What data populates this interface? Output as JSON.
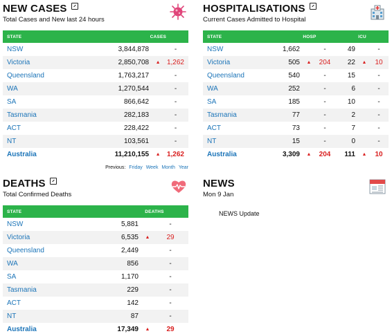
{
  "new_cases": {
    "title": "NEW CASES",
    "subtitle": "Total Cases and New last 24 hours",
    "icon": "virus-icon",
    "headers": [
      "STATE",
      "CASES"
    ],
    "rows": [
      {
        "state": "NSW",
        "value": "3,844,878",
        "arrow": "",
        "change": "-"
      },
      {
        "state": "Victoria",
        "value": "2,850,708",
        "arrow": "▲",
        "change": "1,262"
      },
      {
        "state": "Queensland",
        "value": "1,763,217",
        "arrow": "",
        "change": "-"
      },
      {
        "state": "WA",
        "value": "1,270,544",
        "arrow": "",
        "change": "-"
      },
      {
        "state": "SA",
        "value": "866,642",
        "arrow": "",
        "change": "-"
      },
      {
        "state": "Tasmania",
        "value": "282,183",
        "arrow": "",
        "change": "-"
      },
      {
        "state": "ACT",
        "value": "228,422",
        "arrow": "",
        "change": "-"
      },
      {
        "state": "NT",
        "value": "103,561",
        "arrow": "",
        "change": "-"
      },
      {
        "state": "Australia",
        "value": "11,210,155",
        "arrow": "▲",
        "change": "1,262"
      }
    ],
    "previous": {
      "label": "Previous:",
      "links": [
        "Friday",
        "Week",
        "Month",
        "Year"
      ]
    }
  },
  "hospitalisations": {
    "title": "HOSPITALISATIONS",
    "subtitle": "Current Cases Admitted to Hospital",
    "icon": "hospital-icon",
    "headers": [
      "STATE",
      "HOSP",
      "ICU"
    ],
    "rows": [
      {
        "state": "NSW",
        "hosp": "1,662",
        "hosp_arrow": "",
        "hosp_change": "-",
        "icu": "49",
        "icu_arrow": "",
        "icu_change": "-"
      },
      {
        "state": "Victoria",
        "hosp": "505",
        "hosp_arrow": "▲",
        "hosp_change": "204",
        "icu": "22",
        "icu_arrow": "▲",
        "icu_change": "10"
      },
      {
        "state": "Queensland",
        "hosp": "540",
        "hosp_arrow": "",
        "hosp_change": "-",
        "icu": "15",
        "icu_arrow": "",
        "icu_change": "-"
      },
      {
        "state": "WA",
        "hosp": "252",
        "hosp_arrow": "",
        "hosp_change": "-",
        "icu": "6",
        "icu_arrow": "",
        "icu_change": "-"
      },
      {
        "state": "SA",
        "hosp": "185",
        "hosp_arrow": "",
        "hosp_change": "-",
        "icu": "10",
        "icu_arrow": "",
        "icu_change": "-"
      },
      {
        "state": "Tasmania",
        "hosp": "77",
        "hosp_arrow": "",
        "hosp_change": "-",
        "icu": "2",
        "icu_arrow": "",
        "icu_change": "-"
      },
      {
        "state": "ACT",
        "hosp": "73",
        "hosp_arrow": "",
        "hosp_change": "-",
        "icu": "7",
        "icu_arrow": "",
        "icu_change": "-"
      },
      {
        "state": "NT",
        "hosp": "15",
        "hosp_arrow": "",
        "hosp_change": "-",
        "icu": "0",
        "icu_arrow": "",
        "icu_change": "-"
      },
      {
        "state": "Australia",
        "hosp": "3,309",
        "hosp_arrow": "▲",
        "hosp_change": "204",
        "icu": "111",
        "icu_arrow": "▲",
        "icu_change": "10"
      }
    ]
  },
  "deaths": {
    "title": "DEATHS",
    "subtitle": "Total Confirmed Deaths",
    "icon": "heart-pulse-icon",
    "headers": [
      "STATE",
      "DEATHS"
    ],
    "rows": [
      {
        "state": "NSW",
        "value": "5,881",
        "arrow": "",
        "change": "-"
      },
      {
        "state": "Victoria",
        "value": "6,535",
        "arrow": "▲",
        "change": "29"
      },
      {
        "state": "Queensland",
        "value": "2,449",
        "arrow": "",
        "change": "-"
      },
      {
        "state": "WA",
        "value": "856",
        "arrow": "",
        "change": "-"
      },
      {
        "state": "SA",
        "value": "1,170",
        "arrow": "",
        "change": "-"
      },
      {
        "state": "Tasmania",
        "value": "229",
        "arrow": "",
        "change": "-"
      },
      {
        "state": "ACT",
        "value": "142",
        "arrow": "",
        "change": "-"
      },
      {
        "state": "NT",
        "value": "87",
        "arrow": "",
        "change": "-"
      },
      {
        "state": "Australia",
        "value": "17,349",
        "arrow": "▲",
        "change": "29"
      }
    ]
  },
  "news": {
    "title": "NEWS",
    "date": "Mon 9 Jan",
    "icon": "newspaper-icon",
    "update_text": "NEWS Update"
  },
  "colors": {
    "header_green": "#2cb34a",
    "link_blue": "#1b74b8",
    "increase_red": "#d92020"
  }
}
